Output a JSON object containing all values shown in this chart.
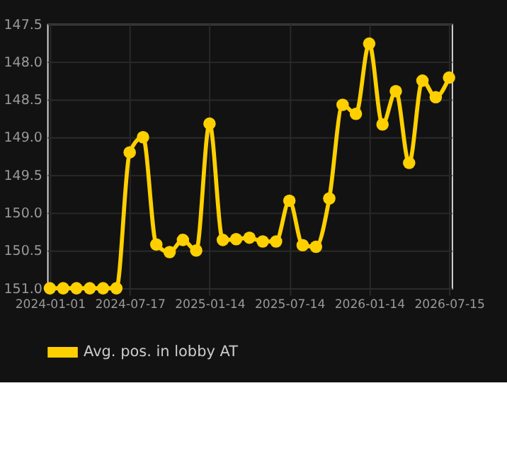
{
  "chart_data": {
    "type": "line",
    "categories": [
      "2024-01-01",
      null,
      null,
      null,
      null,
      null,
      "2024-07-17",
      null,
      null,
      null,
      null,
      null,
      "2025-01-14",
      null,
      null,
      null,
      null,
      null,
      "2025-07-14",
      null,
      null,
      null,
      null,
      null,
      "2026-01-14",
      null,
      null,
      null,
      null,
      null,
      "2026-07-15"
    ],
    "series": [
      {
        "name": "Avg. pos. in lobby AT",
        "color": "#ffd000",
        "values": [
          151.0,
          151.0,
          151.0,
          151.0,
          151.0,
          151.0,
          149.2,
          149.0,
          150.42,
          150.52,
          150.36,
          150.5,
          148.82,
          150.36,
          150.35,
          150.33,
          150.38,
          150.38,
          149.84,
          150.43,
          150.45,
          149.81,
          148.57,
          148.69,
          147.76,
          148.83,
          148.39,
          149.34,
          148.25,
          148.47,
          148.21
        ]
      }
    ],
    "ylim": [
      151.0,
      147.5
    ],
    "yticks": [
      {
        "value": 147.5,
        "label": "147.5"
      },
      {
        "value": 148,
        "label": "148.0"
      },
      {
        "value": 148.5,
        "label": "148.5"
      },
      {
        "value": 149,
        "label": "149.0"
      },
      {
        "value": 149.5,
        "label": "149.5"
      },
      {
        "value": 150,
        "label": "150.0"
      },
      {
        "value": 150.5,
        "label": "150.5"
      },
      {
        "value": 151,
        "label": "151.0"
      }
    ],
    "grid": true,
    "legend": "bottom",
    "marker": "circle",
    "line_style": "solid"
  }
}
